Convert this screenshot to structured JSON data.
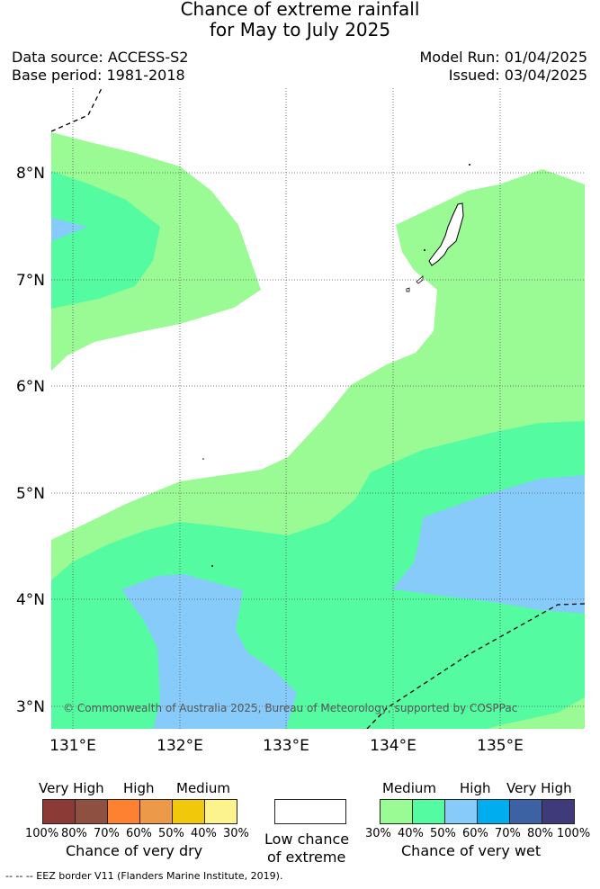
{
  "title": {
    "line1": "Chance of extreme rainfall",
    "line2": "for May to July 2025"
  },
  "meta": {
    "data_source": "Data source: ACCESS-S2",
    "base_period": "Base period: 1981-2018",
    "model_run": "Model Run: 01/04/2025",
    "issued": "Issued: 03/04/2025"
  },
  "map": {
    "lat_labels": [
      "8°N",
      "7°N",
      "6°N",
      "5°N",
      "4°N",
      "3°N"
    ],
    "lon_labels": [
      "131°E",
      "132°E",
      "133°E",
      "134°E",
      "135°E"
    ],
    "copyright": "© Commonwealth of Australia 2025, Bureau of Meteorology, supported by COSPPac",
    "colors": {
      "wet_medium": "#9afa94",
      "wet_high_light": "#55fba1",
      "wet_high": "#87cbfa",
      "land": "#ffffff"
    }
  },
  "legend": {
    "dry": {
      "categories": [
        "Very High",
        "High",
        "Medium"
      ],
      "ticks": [
        "100%",
        "80%",
        "70%",
        "60%",
        "50%",
        "40%",
        "30%"
      ],
      "title": "Chance of very dry",
      "colors": [
        "#8b3a35",
        "#8e5040",
        "#fd8130",
        "#ec9a4a",
        "#f1c80a",
        "#fcf38c"
      ]
    },
    "low": {
      "line1": "Low chance",
      "line2": "of extreme"
    },
    "wet": {
      "categories": [
        "Medium",
        "High",
        "Very High"
      ],
      "ticks": [
        "30%",
        "40%",
        "50%",
        "60%",
        "70%",
        "80%",
        "100%"
      ],
      "title": "Chance of very wet",
      "colors": [
        "#9afa94",
        "#55fba1",
        "#87cbfa",
        "#00aeef",
        "#3c62a4",
        "#3f3a7a"
      ]
    }
  },
  "footer": "--  --  -- EEZ border V11 (Flanders Marine Institute, 2019)."
}
